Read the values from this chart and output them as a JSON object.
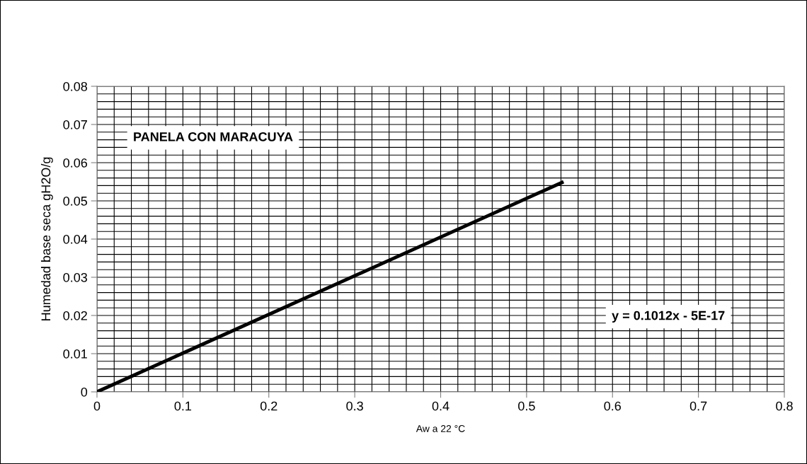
{
  "chart_data": {
    "type": "line",
    "xlabel": "Aw a 22 °C",
    "ylabel": "Humedad base seca gH2O/g",
    "x": [
      0,
      0.543
    ],
    "series": [
      {
        "color": "#000000",
        "values": [
          0,
          0.055
        ]
      }
    ],
    "xlim": [
      0,
      0.8
    ],
    "xticks": [
      0,
      0.1,
      0.2,
      0.3,
      0.4,
      0.5,
      0.6,
      0.7,
      0.8
    ],
    "ylim": [
      0,
      0.08
    ],
    "yticks": [
      0,
      0.01,
      0.02,
      0.03,
      0.04,
      0.05,
      0.06,
      0.07,
      0.08
    ],
    "grid": true,
    "legend": false,
    "marker": "none",
    "line_style": "solid",
    "annotations": [
      "PANELA CON MARACUYA",
      "y = 0.1012x - 5E-17"
    ]
  }
}
